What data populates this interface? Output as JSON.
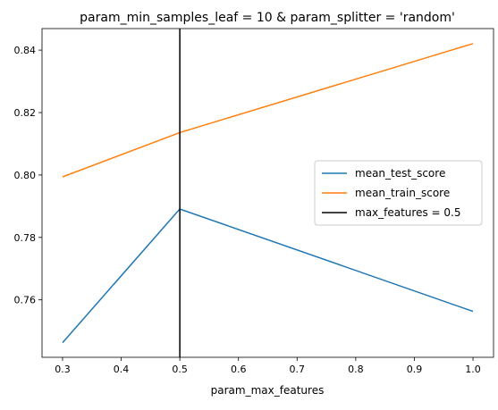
{
  "chart_data": {
    "type": "line",
    "title": "param_min_samples_leaf = 10 & param_splitter = 'random'",
    "xlabel": "param_max_features",
    "ylabel": "",
    "x": [
      0.3,
      0.5,
      1.0
    ],
    "series": [
      {
        "name": "mean_test_score",
        "color": "#1f77b4",
        "values": [
          0.7463,
          0.7891,
          0.7563
        ]
      },
      {
        "name": "mean_train_score",
        "color": "#ff7f0e",
        "values": [
          0.7994,
          0.8136,
          0.8421
        ]
      }
    ],
    "vline": {
      "x": 0.5,
      "label": "max_features = 0.5",
      "color": "#000000"
    },
    "xlim": [
      0.265,
      1.035
    ],
    "ylim": [
      0.7416,
      0.8469
    ],
    "xticks": [
      0.3,
      0.4,
      0.5,
      0.6,
      0.7,
      0.8,
      0.9,
      1.0
    ],
    "xtick_labels": [
      "0.3",
      "0.4",
      "0.5",
      "0.6",
      "0.7",
      "0.8",
      "0.9",
      "1.0"
    ],
    "yticks": [
      0.76,
      0.78,
      0.8,
      0.82,
      0.84
    ],
    "ytick_labels": [
      "0.76",
      "0.78",
      "0.80",
      "0.82",
      "0.84"
    ],
    "grid": false,
    "legend_position": "center-right"
  }
}
